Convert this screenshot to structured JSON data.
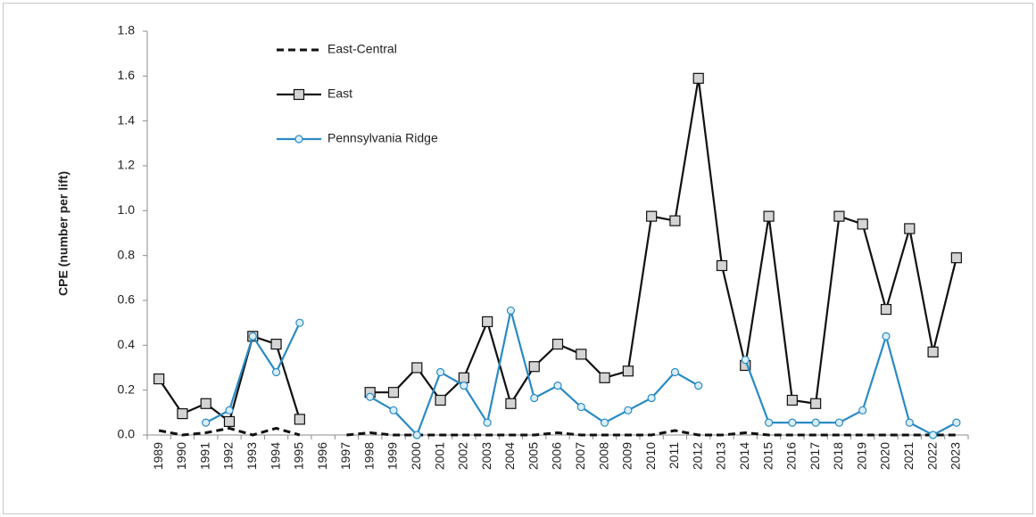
{
  "chart_data": {
    "type": "line",
    "y_label": "CPE (number per lift)",
    "categories": [
      "1989",
      "1990",
      "1991",
      "1992",
      "1993",
      "1994",
      "1995",
      "1996",
      "1997",
      "1998",
      "1999",
      "2000",
      "2001",
      "2002",
      "2003",
      "2004",
      "2005",
      "2006",
      "2007",
      "2008",
      "2009",
      "2010",
      "2011",
      "2012",
      "2013",
      "2014",
      "2015",
      "2016",
      "2017",
      "2018",
      "2019",
      "2020",
      "2021",
      "2022",
      "2023"
    ],
    "series": [
      {
        "name": "East-Central",
        "color": "#111111",
        "line_style": "dashed",
        "marker": "none",
        "values": [
          0.02,
          0,
          0.01,
          0.03,
          0,
          0.03,
          0,
          null,
          0,
          0.01,
          0,
          0,
          0,
          0,
          0,
          0,
          0,
          0.01,
          0,
          0,
          0,
          0,
          0.02,
          0,
          0,
          0.01,
          0,
          0,
          0,
          0,
          0,
          0,
          0,
          0,
          0
        ]
      },
      {
        "name": "East",
        "color": "#111111",
        "line_style": "solid",
        "marker": "square",
        "values": [
          0.25,
          0.095,
          0.14,
          0.06,
          0.44,
          0.405,
          0.07,
          null,
          null,
          0.19,
          0.19,
          0.3,
          0.155,
          0.255,
          0.505,
          0.14,
          0.305,
          0.405,
          0.36,
          0.255,
          0.285,
          0.975,
          0.955,
          1.59,
          0.755,
          0.31,
          0.975,
          0.155,
          0.14,
          0.975,
          0.94,
          0.56,
          0.92,
          0.37,
          0.79
        ]
      },
      {
        "name": "Pennsylvania Ridge",
        "color": "#2a8bc3",
        "line_style": "solid",
        "marker": "circle",
        "values": [
          null,
          null,
          0.055,
          0.11,
          0.44,
          0.28,
          0.5,
          null,
          null,
          0.17,
          0.11,
          0,
          0.28,
          0.22,
          0.055,
          0.555,
          0.165,
          0.22,
          0.125,
          0.055,
          0.11,
          0.165,
          0.28,
          0.22,
          null,
          0.335,
          0.055,
          0.055,
          0.055,
          0.055,
          0.11,
          0.44,
          0.055,
          0,
          0.055
        ]
      }
    ],
    "ylim": [
      0,
      1.8
    ],
    "yticks": [
      {
        "value": 0,
        "label": "0.0"
      },
      0.2,
      0.4,
      0.6,
      0.8,
      {
        "value": 1,
        "label": "1.0"
      },
      1.2,
      1.4,
      1.6,
      1.8
    ],
    "grid": false,
    "legend": "upper left"
  }
}
